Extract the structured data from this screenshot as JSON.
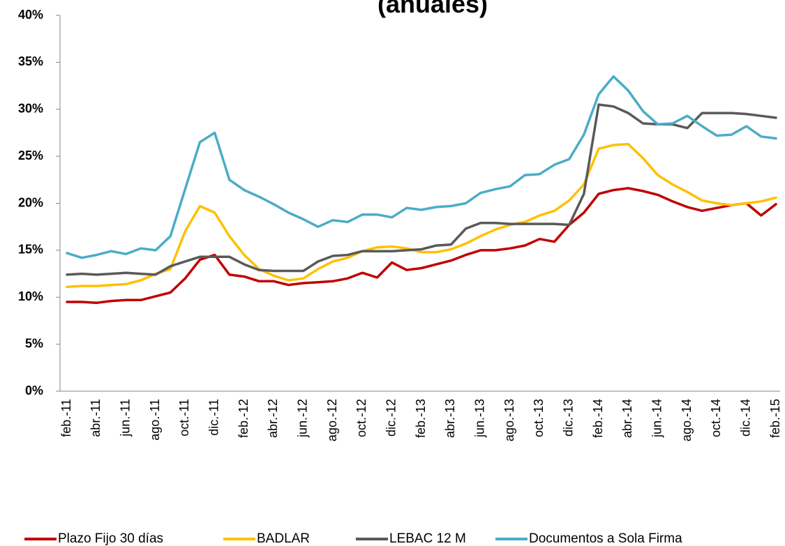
{
  "chart_data": {
    "type": "line",
    "title": "(anuales)",
    "categories": [
      "feb.-11",
      null,
      "abr.-11",
      null,
      "jun.-11",
      null,
      "ago.-11",
      null,
      "oct.-11",
      null,
      "dic.-11",
      null,
      "feb.-12",
      null,
      "abr.-12",
      null,
      "jun.-12",
      null,
      "ago.-12",
      null,
      "oct.-12",
      null,
      "dic.-12",
      null,
      "feb.-13",
      null,
      "abr.-13",
      null,
      "jun.-13",
      null,
      "ago.-13",
      null,
      "oct.-13",
      null,
      "dic.-13",
      null,
      "feb.-14",
      null,
      "abr.-14",
      null,
      "jun.-14",
      null,
      "ago.-14",
      null,
      "oct.-14",
      null,
      "dic.-14",
      null,
      "feb.-15"
    ],
    "series": [
      {
        "name": "Plazo Fijo 30 días",
        "color": "#c00000",
        "values": [
          9.5,
          9.5,
          9.4,
          9.6,
          9.7,
          9.7,
          10.1,
          10.5,
          12.0,
          14.0,
          14.5,
          12.4,
          12.2,
          11.7,
          11.7,
          11.3,
          11.5,
          11.6,
          11.7,
          12.0,
          12.6,
          12.1,
          13.7,
          12.9,
          13.1,
          13.5,
          13.9,
          14.5,
          15.0,
          15.0,
          15.2,
          15.5,
          16.2,
          15.9,
          17.7,
          19.0,
          21.0,
          21.4,
          21.6,
          21.3,
          20.9,
          20.2,
          19.6,
          19.2,
          19.5,
          19.8,
          20.0,
          18.7,
          19.9
        ]
      },
      {
        "name": "BADLAR",
        "color": "#ffc000",
        "values": [
          11.1,
          11.2,
          11.2,
          11.3,
          11.4,
          11.8,
          12.5,
          13.0,
          17.0,
          19.7,
          19.0,
          16.5,
          14.5,
          13.0,
          12.3,
          11.8,
          12.0,
          13.0,
          13.8,
          14.2,
          14.9,
          15.3,
          15.4,
          15.2,
          14.8,
          14.8,
          15.1,
          15.7,
          16.5,
          17.2,
          17.7,
          18.0,
          18.7,
          19.2,
          20.3,
          22.0,
          25.8,
          26.2,
          26.3,
          24.8,
          23.0,
          22.0,
          21.2,
          20.3,
          20.0,
          19.8,
          20.0,
          20.2,
          20.6
        ]
      },
      {
        "name": "LEBAC 12 M",
        "color": "#595959",
        "values": [
          12.4,
          12.5,
          12.4,
          12.5,
          12.6,
          12.5,
          12.4,
          13.3,
          13.8,
          14.3,
          14.3,
          14.3,
          13.5,
          12.9,
          12.8,
          12.8,
          12.8,
          13.8,
          14.4,
          14.5,
          14.9,
          14.9,
          14.9,
          15.0,
          15.1,
          15.5,
          15.6,
          17.3,
          17.9,
          17.9,
          17.8,
          17.8,
          17.8,
          17.8,
          17.7,
          21.0,
          30.5,
          30.3,
          29.6,
          28.5,
          28.4,
          28.4,
          28.0,
          29.6,
          29.6,
          29.6,
          29.5,
          29.3,
          29.1
        ]
      },
      {
        "name": "Documentos a Sola Firma",
        "color": "#4bacc6",
        "values": [
          14.7,
          14.2,
          14.5,
          14.9,
          14.6,
          15.2,
          15.0,
          16.5,
          21.5,
          26.5,
          27.5,
          22.5,
          21.4,
          20.7,
          19.9,
          19.0,
          18.3,
          17.5,
          18.2,
          18.0,
          18.8,
          18.8,
          18.5,
          19.5,
          19.3,
          19.6,
          19.7,
          20.0,
          21.1,
          21.5,
          21.8,
          23.0,
          23.1,
          24.1,
          24.7,
          27.3,
          31.6,
          33.5,
          32.0,
          29.8,
          28.4,
          28.5,
          29.3,
          28.2,
          27.2,
          27.3,
          28.2,
          27.1,
          26.9
        ]
      }
    ],
    "ylim": [
      0,
      40
    ],
    "yticks": [
      {
        "value": 0,
        "label": "0%"
      },
      {
        "value": 5,
        "label": "5%"
      },
      {
        "value": 10,
        "label": "10%"
      },
      {
        "value": 15,
        "label": "15%"
      },
      {
        "value": 20,
        "label": "20%"
      },
      {
        "value": 25,
        "label": "25%"
      },
      {
        "value": 30,
        "label": "30%"
      },
      {
        "value": 35,
        "label": "35%"
      },
      {
        "value": 40,
        "label": "40%"
      }
    ],
    "grid": false,
    "legend": "bottom"
  }
}
